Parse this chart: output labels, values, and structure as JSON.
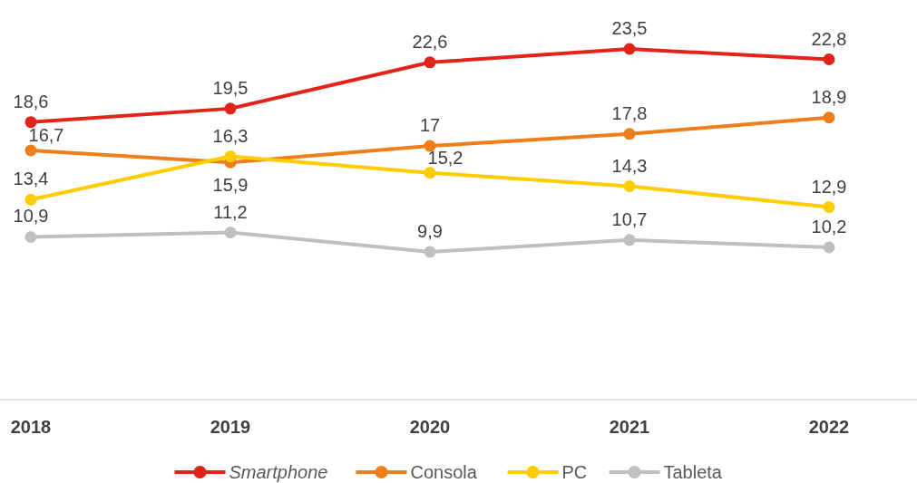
{
  "chart_data": {
    "type": "line",
    "categories": [
      "2018",
      "2019",
      "2020",
      "2021",
      "2022"
    ],
    "series": [
      {
        "name": "Smartphone",
        "color": "#e2231a",
        "values": [
          18.6,
          19.5,
          22.6,
          23.5,
          22.8
        ],
        "value_labels": [
          "18,6",
          "19,5",
          "22,6",
          "23,5",
          "22,8"
        ]
      },
      {
        "name": "Consola",
        "color": "#ee7d1a",
        "values": [
          16.7,
          15.9,
          17,
          17.8,
          18.9
        ],
        "value_labels": [
          "16,7",
          "15,9",
          "17",
          "17,8",
          "18,9"
        ]
      },
      {
        "name": "PC",
        "color": "#ffcc00",
        "values": [
          13.4,
          16.3,
          15.2,
          14.3,
          12.9
        ],
        "value_labels": [
          "13,4",
          "16,3",
          "15,2",
          "14,3",
          "12,9"
        ]
      },
      {
        "name": "Tableta",
        "color": "#bfbfbf",
        "values": [
          10.9,
          11.2,
          9.9,
          10.7,
          10.2
        ],
        "value_labels": [
          "10,9",
          "11,2",
          "9,9",
          "10,7",
          "10,2"
        ]
      }
    ],
    "legend": "bottom",
    "marker": "circle",
    "line_style": "solid"
  }
}
